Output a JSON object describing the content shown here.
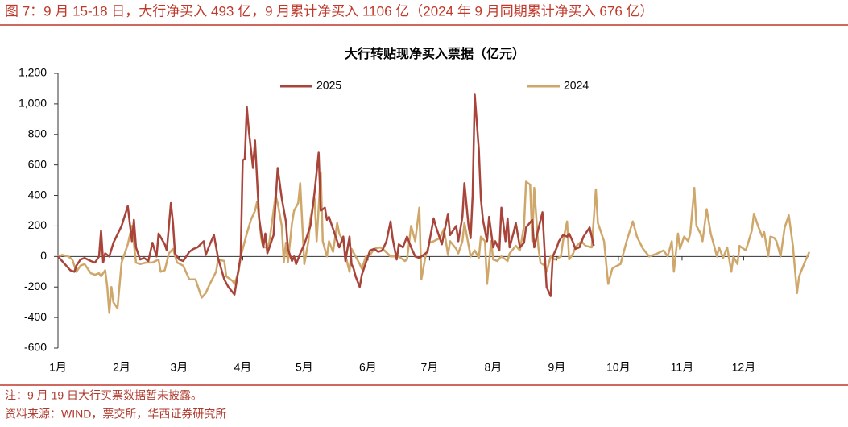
{
  "header": "图 7：9 月 15-18 日，大行净买入 493 亿，9 月累计净买入 1106 亿（2024 年 9 月同期累计净买入 676 亿）",
  "notes": [
    "注：9 月 19 日大行买票数据暂未披露。",
    "资料来源：WIND，票交所，华西证券研究所"
  ],
  "chart_data": {
    "type": "line",
    "title": "大行转贴现净买入票据（亿元）",
    "xlim": [
      0,
      366
    ],
    "xticks": [
      {
        "value": 0,
        "label": "1月"
      },
      {
        "value": 31,
        "label": "2月"
      },
      {
        "value": 59,
        "label": "3月"
      },
      {
        "value": 90,
        "label": "4月"
      },
      {
        "value": 120,
        "label": "5月"
      },
      {
        "value": 151,
        "label": "6月"
      },
      {
        "value": 181,
        "label": "7月"
      },
      {
        "value": 212,
        "label": "8月"
      },
      {
        "value": 243,
        "label": "9月"
      },
      {
        "value": 273,
        "label": "10月"
      },
      {
        "value": 304,
        "label": "11月"
      },
      {
        "value": 334,
        "label": "12月"
      }
    ],
    "ylim": [
      -600,
      1200
    ],
    "yticks": [
      {
        "value": 1200,
        "label": "1,200"
      },
      {
        "value": 1000,
        "label": "1,000"
      },
      800,
      600,
      400,
      200,
      0,
      -200,
      -400,
      -600
    ],
    "legend": "top",
    "series": [
      {
        "name": "2025",
        "color": "#a8443a",
        "x": [
          0,
          2,
          4,
          6,
          8,
          9,
          11,
          13,
          16,
          18,
          20,
          21,
          22,
          23,
          25,
          27,
          31,
          34,
          36,
          37,
          38,
          40,
          42,
          44,
          46,
          48,
          49,
          52,
          53,
          55,
          56,
          57,
          59,
          61,
          64,
          66,
          68,
          71,
          72,
          74,
          76,
          78,
          81,
          83,
          86,
          88,
          89,
          90,
          91,
          92,
          93,
          95,
          96,
          98,
          100,
          101,
          102,
          105,
          107,
          109,
          111,
          112,
          114,
          115,
          116,
          118,
          120,
          123,
          125,
          127,
          128,
          130,
          131,
          132,
          134,
          136,
          137,
          139,
          140,
          142,
          143,
          144,
          145,
          147,
          148,
          150,
          152,
          154,
          156,
          158,
          160,
          162,
          163,
          165,
          166,
          168,
          170,
          172,
          174,
          176,
          180,
          183,
          184,
          186,
          187,
          190,
          191,
          194,
          195,
          197,
          198,
          200,
          201,
          202,
          203,
          205,
          206,
          207,
          209,
          210,
          212,
          213,
          215,
          216,
          218,
          219,
          220,
          222,
          223,
          225,
          227,
          228,
          231,
          232,
          234,
          236,
          238,
          240,
          241,
          243,
          244,
          246,
          248,
          249,
          251,
          252,
          254,
          256,
          259,
          261
        ],
        "values": [
          0,
          -30,
          -60,
          -90,
          -100,
          -60,
          -20,
          -10,
          -30,
          -40,
          0,
          170,
          -40,
          20,
          0,
          90,
          200,
          330,
          100,
          240,
          60,
          -20,
          -10,
          -30,
          90,
          0,
          150,
          80,
          40,
          350,
          220,
          20,
          -20,
          -30,
          30,
          50,
          60,
          100,
          10,
          80,
          140,
          -10,
          -150,
          -200,
          -250,
          -80,
          0,
          630,
          640,
          980,
          820,
          580,
          760,
          250,
          60,
          150,
          20,
          140,
          580,
          380,
          230,
          50,
          -30,
          0,
          -50,
          20,
          80,
          200,
          420,
          680,
          300,
          320,
          240,
          260,
          180,
          100,
          60,
          130,
          -30,
          130,
          -50,
          -80,
          -130,
          -200,
          -120,
          -40,
          40,
          50,
          30,
          40,
          100,
          230,
          120,
          -20,
          80,
          60,
          130,
          60,
          0,
          -10,
          30,
          250,
          200,
          120,
          80,
          280,
          140,
          200,
          100,
          260,
          480,
          200,
          120,
          400,
          1060,
          700,
          380,
          240,
          100,
          260,
          60,
          100,
          40,
          320,
          100,
          250,
          60,
          160,
          220,
          60,
          90,
          190,
          240,
          60,
          180,
          290,
          -200,
          -260,
          0,
          60,
          100,
          140,
          130,
          150,
          90,
          50,
          60,
          130,
          190,
          70
        ]
      },
      {
        "name": "2024",
        "color": "#cfa76a",
        "x": [
          0,
          2,
          5,
          7,
          9,
          11,
          13,
          15,
          16,
          18,
          20,
          21,
          23,
          24,
          25,
          26,
          27,
          29,
          31,
          32,
          34,
          36,
          38,
          40,
          43,
          46,
          49,
          50,
          52,
          54,
          56,
          58,
          61,
          64,
          67,
          70,
          72,
          74,
          77,
          78,
          81,
          82,
          85,
          86,
          88,
          89,
          92,
          94,
          96,
          97,
          99,
          100,
          102,
          103,
          106,
          107,
          109,
          110,
          111,
          112,
          114,
          115,
          117,
          118,
          120,
          122,
          123,
          125,
          126,
          128,
          129,
          131,
          132,
          134,
          136,
          137,
          139,
          140,
          142,
          143,
          145,
          147,
          148,
          150,
          152,
          154,
          157,
          159,
          162,
          164,
          166,
          169,
          170,
          172,
          174,
          176,
          177,
          179,
          181,
          183,
          186,
          188,
          190,
          191,
          194,
          195,
          197,
          198,
          201,
          203,
          205,
          206,
          208,
          209,
          211,
          212,
          214,
          216,
          219,
          220,
          223,
          225,
          227,
          228,
          230,
          231,
          232,
          234,
          235,
          237,
          238,
          240,
          242,
          245,
          246,
          248,
          249,
          251,
          252,
          255,
          257,
          260,
          262,
          263,
          266,
          268,
          270,
          271,
          274,
          277,
          280,
          282,
          285,
          288,
          290,
          292,
          295,
          297,
          299,
          300,
          302,
          303,
          305,
          307,
          308,
          310,
          311,
          313,
          314,
          316,
          318,
          319,
          321,
          322,
          324,
          326,
          328,
          329,
          331,
          332,
          335,
          336,
          338,
          339,
          341,
          343,
          344,
          346,
          347,
          349,
          350,
          352,
          354,
          356,
          358,
          360,
          361,
          364,
          366
        ],
        "values": [
          0,
          10,
          0,
          -20,
          -100,
          -60,
          -50,
          -90,
          -110,
          -120,
          -110,
          -130,
          -90,
          -200,
          -370,
          -200,
          -300,
          -340,
          -40,
          0,
          80,
          200,
          -40,
          -50,
          -40,
          -40,
          -20,
          -100,
          -90,
          20,
          50,
          -40,
          -60,
          -150,
          -150,
          -270,
          -240,
          -180,
          -100,
          -20,
          -30,
          -130,
          -160,
          -180,
          -100,
          0,
          150,
          240,
          300,
          360,
          120,
          60,
          60,
          100,
          400,
          350,
          200,
          -40,
          90,
          -40,
          220,
          300,
          350,
          480,
          -50,
          100,
          250,
          380,
          100,
          550,
          100,
          0,
          100,
          30,
          220,
          150,
          100,
          10,
          -100,
          50,
          0,
          -50,
          -80,
          0,
          10,
          50,
          60,
          40,
          0,
          0,
          0,
          -30,
          -20,
          200,
          100,
          320,
          -150,
          0,
          90,
          100,
          120,
          180,
          10,
          100,
          50,
          20,
          100,
          220,
          0,
          40,
          -10,
          130,
          100,
          -180,
          100,
          -20,
          -30,
          0,
          -30,
          20,
          70,
          40,
          200,
          490,
          470,
          100,
          450,
          60,
          -40,
          -60,
          -100,
          0,
          -20,
          0,
          100,
          230,
          -20,
          20,
          60,
          100,
          70,
          60,
          440,
          220,
          100,
          -180,
          -80,
          -70,
          -50,
          100,
          230,
          130,
          50,
          0,
          10,
          20,
          40,
          0,
          100,
          -100,
          150,
          50,
          130,
          100,
          150,
          450,
          200,
          150,
          100,
          310,
          150,
          100,
          0,
          60,
          -10,
          60,
          -100,
          0,
          -50,
          70,
          40,
          80,
          170,
          280,
          200,
          130,
          160,
          0,
          130,
          120,
          100,
          0,
          190,
          270,
          70,
          -240,
          -130,
          -30,
          30
        ]
      }
    ]
  }
}
